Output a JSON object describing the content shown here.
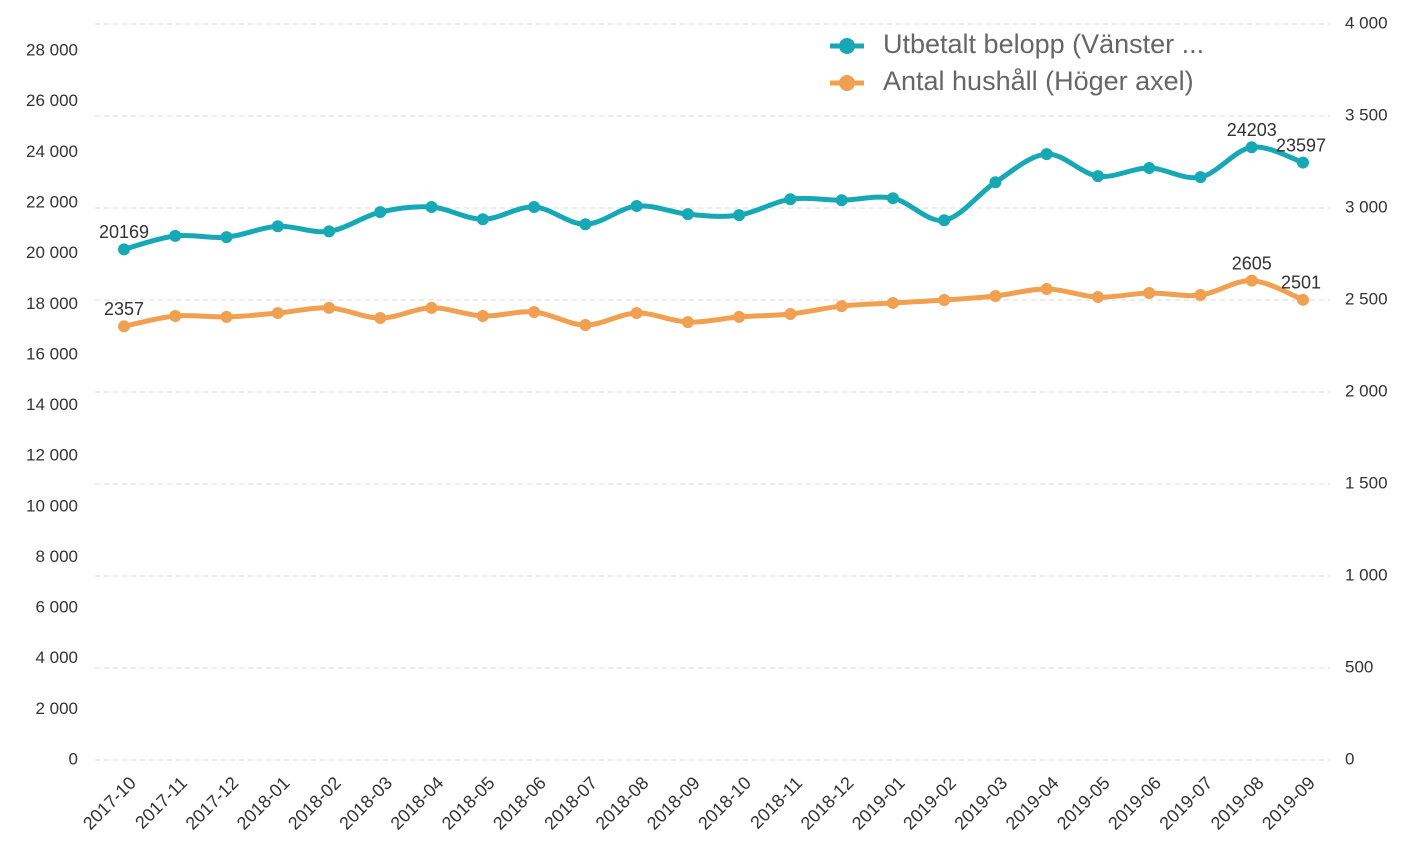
{
  "chart_data": {
    "type": "line",
    "categories": [
      "2017-10",
      "2017-11",
      "2017-12",
      "2018-01",
      "2018-02",
      "2018-03",
      "2018-04",
      "2018-05",
      "2018-06",
      "2018-07",
      "2018-08",
      "2018-09",
      "2018-10",
      "2018-11",
      "2018-12",
      "2019-01",
      "2019-02",
      "2019-03",
      "2019-04",
      "2019-05",
      "2019-06",
      "2019-07",
      "2019-08",
      "2019-09"
    ],
    "series": [
      {
        "name": "Utbetalt belopp (Vänster ...",
        "color": "#17a8b5",
        "axis": "y",
        "values": [
          20169,
          20700,
          20650,
          21080,
          20880,
          21640,
          21840,
          21360,
          21840,
          21160,
          21880,
          21560,
          21520,
          22150,
          22110,
          22190,
          21320,
          22820,
          23930,
          23060,
          23380,
          23020,
          24203,
          23597
        ],
        "value_labels": [
          "20169",
          null,
          null,
          null,
          null,
          null,
          null,
          null,
          null,
          null,
          null,
          null,
          null,
          null,
          null,
          null,
          null,
          null,
          null,
          null,
          null,
          null,
          "24203",
          "23597"
        ]
      },
      {
        "name": "Antal hushåll (Höger axel)",
        "color": "#f0a050",
        "axis": "y2",
        "values": [
          2357,
          2413,
          2408,
          2429,
          2457,
          2402,
          2457,
          2413,
          2435,
          2364,
          2429,
          2380,
          2408,
          2424,
          2467,
          2484,
          2500,
          2522,
          2560,
          2516,
          2538,
          2527,
          2605,
          2501
        ],
        "value_labels": [
          "2357",
          null,
          null,
          null,
          null,
          null,
          null,
          null,
          null,
          null,
          null,
          null,
          null,
          null,
          null,
          null,
          null,
          null,
          null,
          null,
          null,
          null,
          "2605",
          "2501"
        ]
      }
    ],
    "ylim": [
      0,
      29070
    ],
    "yticks": [
      0,
      {
        "value": 2000,
        "label": "2 000"
      },
      {
        "value": 4000,
        "label": "4 000"
      },
      {
        "value": 6000,
        "label": "6 000"
      },
      {
        "value": 8000,
        "label": "8 000"
      },
      {
        "value": 10000,
        "label": "10 000"
      },
      {
        "value": 12000,
        "label": "12 000"
      },
      {
        "value": 14000,
        "label": "14 000"
      },
      {
        "value": 16000,
        "label": "16 000"
      },
      {
        "value": 18000,
        "label": "18 000"
      },
      {
        "value": 20000,
        "label": "20 000"
      },
      {
        "value": 22000,
        "label": "22 000"
      },
      {
        "value": 24000,
        "label": "24 000"
      },
      {
        "value": 26000,
        "label": "26 000"
      },
      {
        "value": 28000,
        "label": "28 000"
      }
    ],
    "y2lim": [
      0,
      4000
    ],
    "y2ticks": [
      0,
      500,
      {
        "value": 1000,
        "label": "1 000"
      },
      {
        "value": 1500,
        "label": "1 500"
      },
      {
        "value": 2000,
        "label": "2 000"
      },
      {
        "value": 2500,
        "label": "2 500"
      },
      {
        "value": 3000,
        "label": "3 000"
      },
      {
        "value": 3500,
        "label": "3 500"
      },
      {
        "value": 4000,
        "label": "4 000"
      }
    ],
    "grid": true,
    "grid_axis": "y2",
    "legend": "top-right",
    "smooth": true
  }
}
